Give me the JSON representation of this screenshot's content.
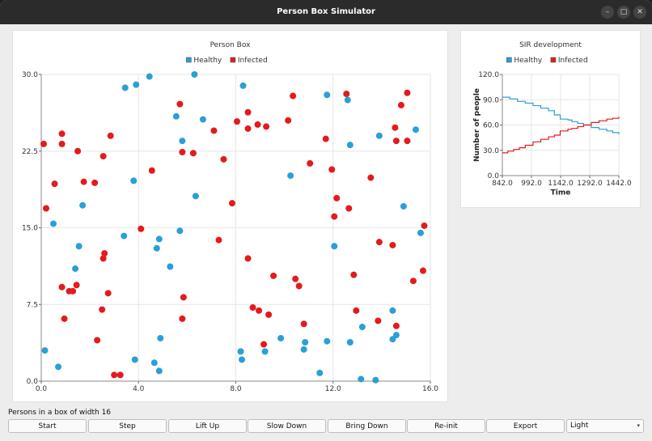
{
  "window": {
    "title": "Person Box Simulator",
    "controls": {
      "minimize": "–",
      "maximize": "□",
      "close": "✕"
    }
  },
  "colors": {
    "healthy": "#2a9fd8",
    "infected": "#e41a1c"
  },
  "chart_data": [
    {
      "type": "scatter",
      "title": "Person Box",
      "xlabel": "",
      "ylabel": "",
      "xlim": [
        0,
        16
      ],
      "ylim": [
        0,
        30
      ],
      "xticks": [
        "0.0",
        "4.0",
        "8.0",
        "12.0",
        "16.0"
      ],
      "yticks": [
        "0.0",
        "7.5",
        "15.0",
        "22.5",
        "30.0"
      ],
      "legend": "top",
      "grid": true,
      "series": [
        {
          "name": "Healthy",
          "color": "#2a9fd8",
          "points": [
            [
              3.45,
              28.7
            ],
            [
              3.9,
              29.0
            ],
            [
              4.45,
              29.8
            ],
            [
              6.3,
              30.0
            ],
            [
              8.3,
              28.9
            ],
            [
              11.75,
              28.0
            ],
            [
              12.6,
              27.5
            ],
            [
              5.55,
              25.9
            ],
            [
              6.65,
              25.6
            ],
            [
              15.4,
              24.6
            ],
            [
              13.9,
              24.0
            ],
            [
              5.8,
              23.5
            ],
            [
              12.7,
              23.1
            ],
            [
              1.7,
              17.2
            ],
            [
              3.8,
              19.6
            ],
            [
              6.35,
              18.1
            ],
            [
              10.25,
              20.1
            ],
            [
              14.9,
              17.1
            ],
            [
              0.5,
              15.4
            ],
            [
              1.55,
              13.2
            ],
            [
              3.4,
              14.2
            ],
            [
              4.85,
              13.9
            ],
            [
              4.75,
              13.0
            ],
            [
              5.7,
              14.7
            ],
            [
              12.05,
              13.2
            ],
            [
              15.6,
              14.5
            ],
            [
              1.4,
              11.0
            ],
            [
              5.3,
              11.2
            ],
            [
              0.15,
              3.0
            ],
            [
              0.7,
              1.4
            ],
            [
              3.85,
              2.1
            ],
            [
              4.65,
              1.8
            ],
            [
              4.85,
              1.0
            ],
            [
              4.9,
              4.2
            ],
            [
              8.2,
              2.9
            ],
            [
              8.25,
              2.1
            ],
            [
              9.2,
              2.9
            ],
            [
              9.85,
              4.2
            ],
            [
              10.8,
              3.1
            ],
            [
              10.85,
              3.8
            ],
            [
              11.45,
              0.8
            ],
            [
              11.75,
              3.9
            ],
            [
              13.2,
              5.3
            ],
            [
              12.7,
              3.8
            ],
            [
              14.45,
              4.1
            ],
            [
              14.6,
              4.5
            ],
            [
              14.45,
              6.9
            ],
            [
              13.15,
              0.2
            ],
            [
              13.75,
              0.1
            ]
          ]
        },
        {
          "name": "Infected",
          "color": "#e41a1c",
          "points": [
            [
              0.1,
              23.2
            ],
            [
              0.85,
              24.2
            ],
            [
              0.85,
              23.2
            ],
            [
              0.55,
              19.3
            ],
            [
              1.5,
              22.5
            ],
            [
              1.75,
              19.5
            ],
            [
              2.2,
              19.4
            ],
            [
              2.55,
              22.0
            ],
            [
              2.85,
              24.0
            ],
            [
              0.2,
              16.9
            ],
            [
              5.7,
              27.1
            ],
            [
              4.55,
              20.6
            ],
            [
              5.8,
              22.4
            ],
            [
              6.25,
              22.3
            ],
            [
              7.1,
              24.5
            ],
            [
              7.5,
              21.7
            ],
            [
              7.85,
              17.4
            ],
            [
              8.05,
              25.4
            ],
            [
              8.5,
              24.7
            ],
            [
              8.5,
              26.3
            ],
            [
              8.9,
              25.1
            ],
            [
              9.25,
              24.9
            ],
            [
              10.15,
              25.5
            ],
            [
              10.35,
              27.9
            ],
            [
              11.05,
              21.3
            ],
            [
              11.7,
              23.7
            ],
            [
              11.95,
              20.7
            ],
            [
              12.15,
              17.9
            ],
            [
              12.05,
              16.1
            ],
            [
              12.55,
              28.1
            ],
            [
              12.65,
              16.9
            ],
            [
              13.55,
              19.9
            ],
            [
              14.55,
              24.8
            ],
            [
              14.6,
              23.5
            ],
            [
              14.8,
              27.0
            ],
            [
              15.05,
              28.2
            ],
            [
              15.05,
              23.5
            ],
            [
              15.75,
              15.2
            ],
            [
              4.1,
              14.9
            ],
            [
              7.3,
              13.8
            ],
            [
              8.5,
              12.0
            ],
            [
              14.45,
              13.3
            ],
            [
              13.9,
              13.6
            ],
            [
              15.3,
              9.8
            ],
            [
              15.7,
              10.8
            ],
            [
              0.85,
              9.2
            ],
            [
              1.15,
              8.8
            ],
            [
              1.3,
              8.8
            ],
            [
              1.45,
              9.4
            ],
            [
              2.55,
              12.0
            ],
            [
              2.6,
              12.5
            ],
            [
              2.75,
              8.6
            ],
            [
              2.5,
              7.0
            ],
            [
              2.3,
              4.0
            ],
            [
              0.95,
              6.1
            ],
            [
              5.8,
              6.1
            ],
            [
              5.85,
              8.2
            ],
            [
              9.55,
              10.3
            ],
            [
              10.45,
              10.0
            ],
            [
              10.6,
              9.3
            ],
            [
              12.85,
              10.4
            ],
            [
              8.7,
              7.2
            ],
            [
              8.95,
              6.9
            ],
            [
              9.35,
              6.5
            ],
            [
              10.8,
              5.6
            ],
            [
              12.95,
              6.9
            ],
            [
              13.85,
              5.9
            ],
            [
              14.6,
              5.4
            ],
            [
              9.15,
              3.6
            ],
            [
              3.0,
              0.6
            ],
            [
              3.25,
              0.6
            ]
          ]
        }
      ]
    },
    {
      "type": "line",
      "title": "SIR development",
      "xlabel": "Time",
      "ylabel": "Number of people",
      "xlim": [
        842,
        1442
      ],
      "ylim": [
        0,
        120
      ],
      "xticks": [
        "842.0",
        "992.0",
        "1142.0",
        "1292.0",
        "1442.0"
      ],
      "yticks": [
        "0.0",
        "30.0",
        "60.0",
        "90.0",
        "120.0"
      ],
      "legend": "top",
      "grid": true,
      "series": [
        {
          "name": "Healthy",
          "color": "#2a9fd8",
          "x": [
            842,
            880,
            920,
            960,
            1000,
            1040,
            1080,
            1110,
            1140,
            1180,
            1200,
            1230,
            1260,
            1300,
            1340,
            1380,
            1410,
            1442
          ],
          "y": [
            93,
            91,
            88,
            86,
            83,
            80,
            77,
            72,
            67,
            66,
            64,
            62,
            60,
            57,
            55,
            53,
            51,
            49
          ]
        },
        {
          "name": "Infected",
          "color": "#e41a1c",
          "x": [
            842,
            870,
            900,
            930,
            960,
            1000,
            1040,
            1080,
            1110,
            1140,
            1180,
            1200,
            1230,
            1260,
            1300,
            1340,
            1380,
            1410,
            1442
          ],
          "y": [
            27,
            29,
            31,
            33,
            36,
            40,
            43,
            46,
            48,
            53,
            55,
            56,
            58,
            60,
            63,
            65,
            67,
            68,
            70
          ]
        }
      ]
    }
  ],
  "caption": "Persons in a box of width 16",
  "buttons": [
    "Start",
    "Step",
    "Lift Up",
    "Slow Down",
    "Bring Down",
    "Re-init",
    "Export"
  ],
  "theme_select": {
    "value": "Light",
    "arrow": "▾"
  }
}
